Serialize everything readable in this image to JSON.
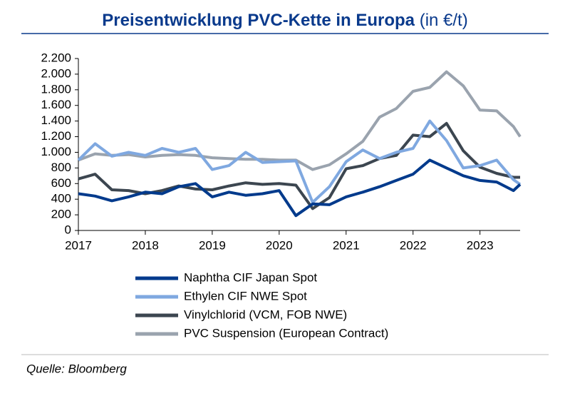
{
  "chart_data": {
    "type": "line",
    "title": "Preisentwicklung PVC-Kette in Europa",
    "subtitle": "(in €/t)",
    "source": "Quelle: Bloomberg",
    "x": [
      2017,
      2017.25,
      2017.5,
      2017.75,
      2018,
      2018.25,
      2018.5,
      2018.75,
      2019,
      2019.25,
      2019.5,
      2019.75,
      2020,
      2020.25,
      2020.5,
      2020.75,
      2021,
      2021.25,
      2021.5,
      2021.75,
      2022,
      2022.25,
      2022.5,
      2022.75,
      2023,
      2023.25,
      2023.5,
      2023.6
    ],
    "xlim": [
      2017,
      2023.6
    ],
    "xticks": [
      2017,
      2018,
      2019,
      2020,
      2021,
      2022,
      2023
    ],
    "ylim": [
      0,
      2200
    ],
    "yticks": [
      0,
      200,
      400,
      600,
      800,
      {
        "value": 1000,
        "label": "1.000"
      },
      {
        "value": 1200,
        "label": "1.200"
      },
      {
        "value": 1400,
        "label": "1.400"
      },
      {
        "value": 1600,
        "label": "1.600"
      },
      {
        "value": 1800,
        "label": "1.800"
      },
      {
        "value": 2000,
        "label": "2.000"
      },
      {
        "value": 2200,
        "label": "2.200"
      }
    ],
    "series": [
      {
        "name": "Naphtha CIF Japan Spot",
        "color": "#003a8c",
        "values": [
          470,
          440,
          380,
          430,
          490,
          470,
          560,
          600,
          430,
          490,
          450,
          470,
          510,
          190,
          340,
          330,
          430,
          490,
          560,
          640,
          720,
          900,
          800,
          700,
          640,
          620,
          510,
          590
        ]
      },
      {
        "name": "Ethylen CIF NWE Spot",
        "color": "#7fa8e0",
        "values": [
          900,
          1110,
          950,
          1000,
          960,
          1050,
          1000,
          1050,
          780,
          830,
          1000,
          870,
          880,
          890,
          360,
          560,
          880,
          1030,
          920,
          1000,
          1050,
          1400,
          1150,
          800,
          830,
          900,
          650,
          590
        ]
      },
      {
        "name": "Vinylchlorid (VCM, FOB NWE)",
        "color": "#3c4650",
        "values": [
          660,
          720,
          520,
          510,
          470,
          510,
          570,
          530,
          520,
          570,
          610,
          590,
          600,
          580,
          280,
          420,
          790,
          830,
          920,
          960,
          1220,
          1200,
          1370,
          1020,
          810,
          730,
          680,
          680
        ]
      },
      {
        "name": "PVC Suspension (European Contract)",
        "color": "#9aa3ae",
        "values": [
          900,
          980,
          960,
          970,
          940,
          960,
          970,
          960,
          930,
          920,
          910,
          910,
          900,
          900,
          780,
          840,
          980,
          1140,
          1450,
          1560,
          1780,
          1830,
          2030,
          1850,
          1540,
          1530,
          1330,
          1200
        ]
      }
    ]
  }
}
